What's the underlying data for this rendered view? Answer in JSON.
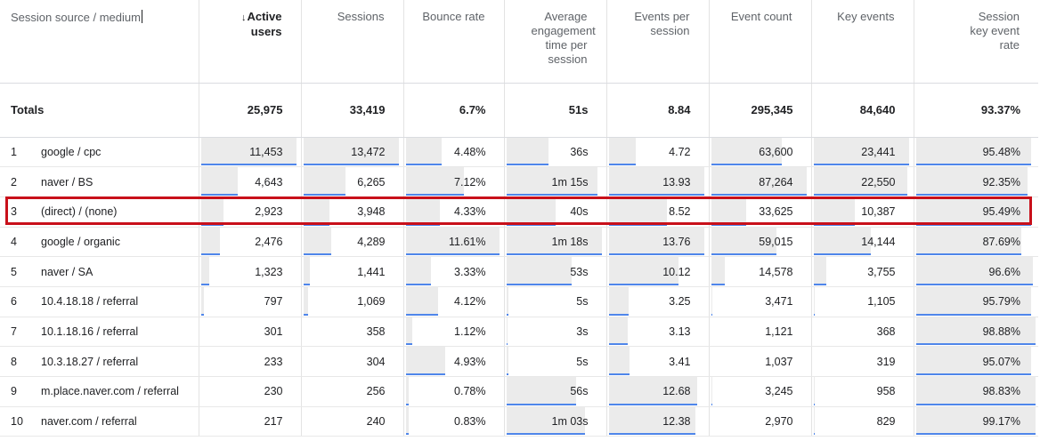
{
  "columns": [
    {
      "key": "source",
      "label": "Session source / medium"
    },
    {
      "key": "active_users",
      "label": "Active users",
      "sorted": true
    },
    {
      "key": "sessions",
      "label": "Sessions"
    },
    {
      "key": "bounce_rate",
      "label": "Bounce rate"
    },
    {
      "key": "avg_engagement",
      "label": "Average engagement time per session"
    },
    {
      "key": "events_per_session",
      "label": "Events per session"
    },
    {
      "key": "event_count",
      "label": "Event count"
    },
    {
      "key": "key_events",
      "label": "Key events"
    },
    {
      "key": "session_key_event_rate",
      "label": "Session key event rate"
    }
  ],
  "sort_arrow": "↓",
  "totals": {
    "label": "Totals",
    "values": [
      "25,975",
      "33,419",
      "6.7%",
      "51s",
      "8.84",
      "295,345",
      "84,640",
      "93.37%"
    ]
  },
  "rows": [
    {
      "rank": "1",
      "source": "google / cpc",
      "values": [
        "11,453",
        "13,472",
        "4.48%",
        "36s",
        "4.72",
        "63,600",
        "23,441",
        "95.48%"
      ]
    },
    {
      "rank": "2",
      "source": "naver / BS",
      "values": [
        "4,643",
        "6,265",
        "7.12%",
        "1m 15s",
        "13.93",
        "87,264",
        "22,550",
        "92.35%"
      ]
    },
    {
      "rank": "3",
      "source": "(direct) / (none)",
      "values": [
        "2,923",
        "3,948",
        "4.33%",
        "40s",
        "8.52",
        "33,625",
        "10,387",
        "95.49%"
      ],
      "highlighted": true
    },
    {
      "rank": "4",
      "source": "google / organic",
      "values": [
        "2,476",
        "4,289",
        "11.61%",
        "1m 18s",
        "13.76",
        "59,015",
        "14,144",
        "87.69%"
      ]
    },
    {
      "rank": "5",
      "source": "naver / SA",
      "values": [
        "1,323",
        "1,441",
        "3.33%",
        "53s",
        "10.12",
        "14,578",
        "3,755",
        "96.6%"
      ]
    },
    {
      "rank": "6",
      "source": "10.4.18.18 / referral",
      "values": [
        "797",
        "1,069",
        "4.12%",
        "5s",
        "3.25",
        "3,471",
        "1,105",
        "95.79%"
      ]
    },
    {
      "rank": "7",
      "source": "10.1.18.16 / referral",
      "values": [
        "301",
        "358",
        "1.12%",
        "3s",
        "3.13",
        "1,121",
        "368",
        "98.88%"
      ]
    },
    {
      "rank": "8",
      "source": "10.3.18.27 / referral",
      "values": [
        "233",
        "304",
        "4.93%",
        "5s",
        "3.41",
        "1,037",
        "319",
        "95.07%"
      ]
    },
    {
      "rank": "9",
      "source": "m.place.naver.com / referral",
      "values": [
        "230",
        "256",
        "0.78%",
        "56s",
        "12.68",
        "3,245",
        "958",
        "98.83%"
      ]
    },
    {
      "rank": "10",
      "source": "naver.com / referral",
      "values": [
        "217",
        "240",
        "0.83%",
        "1m 03s",
        "12.38",
        "2,970",
        "829",
        "99.17%"
      ]
    }
  ],
  "bar_fractions": [
    [
      0.98,
      0.98,
      0.4,
      0.45,
      0.3,
      0.73,
      0.98,
      0.96
    ],
    [
      0.4,
      0.45,
      0.62,
      0.93,
      0.98,
      0.98,
      0.96,
      0.93
    ],
    [
      0.26,
      0.29,
      0.38,
      0.52,
      0.61,
      0.38,
      0.44,
      0.96
    ],
    [
      0.22,
      0.31,
      0.98,
      0.98,
      0.98,
      0.68,
      0.6,
      0.88
    ],
    [
      0.12,
      0.1,
      0.29,
      0.68,
      0.72,
      0.17,
      0.16,
      0.97
    ],
    [
      0.07,
      0.08,
      0.36,
      0.06,
      0.23,
      0.04,
      0.05,
      0.96
    ],
    [
      0.03,
      0.03,
      0.1,
      0.04,
      0.22,
      0.01,
      0.02,
      0.99
    ],
    [
      0.02,
      0.02,
      0.43,
      0.06,
      0.24,
      0.01,
      0.01,
      0.96
    ],
    [
      0.02,
      0.02,
      0.07,
      0.72,
      0.91,
      0.04,
      0.04,
      0.99
    ],
    [
      0.02,
      0.02,
      0.07,
      0.81,
      0.89,
      0.03,
      0.04,
      0.99
    ]
  ],
  "colors": {
    "bar": "#ebebeb",
    "bar_line": "#4f86ea",
    "highlight": "#c8101a"
  }
}
